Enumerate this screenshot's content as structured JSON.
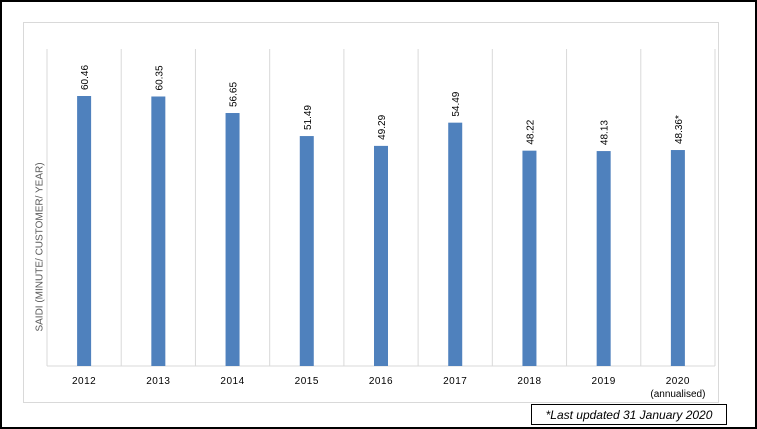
{
  "chart_data": {
    "type": "bar",
    "ylabel": "SAIDI (MINUTE/ CUSTOMER/ YEAR)",
    "xlabel": "",
    "categories": [
      "2012",
      "2013",
      "2014",
      "2015",
      "2016",
      "2017",
      "2018",
      "2019",
      "2020"
    ],
    "category_sublabels": [
      "",
      "",
      "",
      "",
      "",
      "",
      "",
      "",
      "(annualised)"
    ],
    "values": [
      60.46,
      60.35,
      56.65,
      51.49,
      49.29,
      54.49,
      48.22,
      48.13,
      48.36
    ],
    "value_labels": [
      "60.46",
      "60.35",
      "56.65",
      "51.49",
      "49.29",
      "54.49",
      "48.22",
      "48.13",
      "48.36*"
    ],
    "ylim": [
      0,
      70
    ],
    "grid": "vertical-separators",
    "bar_color": "#4f81bd",
    "grid_color": "#d9d9d9"
  },
  "footnote": "*Last updated 31 January 2020"
}
